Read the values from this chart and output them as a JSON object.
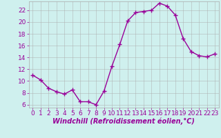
{
  "x": [
    0,
    1,
    2,
    3,
    4,
    5,
    6,
    7,
    8,
    9,
    10,
    11,
    12,
    13,
    14,
    15,
    16,
    17,
    18,
    19,
    20,
    21,
    22,
    23
  ],
  "y": [
    11.0,
    10.2,
    8.8,
    8.2,
    7.8,
    8.5,
    6.5,
    6.5,
    6.0,
    8.3,
    12.5,
    16.2,
    20.2,
    21.6,
    21.8,
    22.0,
    23.2,
    22.7,
    21.2,
    17.2,
    15.0,
    14.3,
    14.1,
    14.6
  ],
  "line_color": "#990099",
  "marker": "+",
  "marker_size": 4,
  "bg_color": "#cff0ee",
  "grid_color": "#aaaaaa",
  "xlabel": "Windchill (Refroidissement éolien,°C)",
  "xlim": [
    -0.5,
    23.5
  ],
  "ylim": [
    5.5,
    23.5
  ],
  "yticks": [
    6,
    8,
    10,
    12,
    14,
    16,
    18,
    20,
    22
  ],
  "xticks": [
    0,
    1,
    2,
    3,
    4,
    5,
    6,
    7,
    8,
    9,
    10,
    11,
    12,
    13,
    14,
    15,
    16,
    17,
    18,
    19,
    20,
    21,
    22,
    23
  ],
  "tick_color": "#990099",
  "label_color": "#990099",
  "font_size": 6.5,
  "xlabel_font_size": 7,
  "line_width": 1.0,
  "marker_edge_width": 1.0
}
